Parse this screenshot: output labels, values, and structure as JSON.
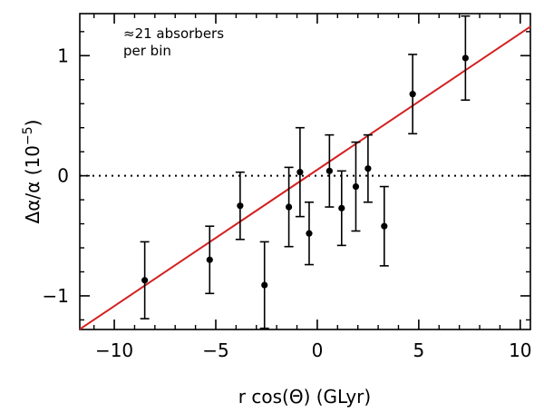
{
  "chart_data": {
    "type": "scatter",
    "title": "",
    "xlabel": "r cos(Θ) (GLyr)",
    "ylabel_main": "Δα/α",
    "ylabel_unit_prefix": "(10",
    "ylabel_unit_exponent": "−5",
    "ylabel_unit_suffix": ")",
    "annotation_line1": "≈21 absorbers",
    "annotation_line2": "per bin",
    "xlim": [
      -11.7,
      10.5
    ],
    "ylim": [
      -1.28,
      1.35
    ],
    "xticks": [
      -10,
      -5,
      0,
      5,
      10
    ],
    "xtick_labels": [
      "−10",
      "−5",
      "0",
      "5",
      "10"
    ],
    "yticks": [
      -1,
      0,
      1
    ],
    "ytick_labels": [
      "−1",
      "0",
      "1"
    ],
    "grid": false,
    "reference_line_y": 0,
    "fit_line": {
      "slope": 0.1135,
      "intercept": 0.05,
      "color": "#d42020"
    },
    "points": [
      {
        "x": -8.5,
        "y": -0.87,
        "err": 0.32
      },
      {
        "x": -5.3,
        "y": -0.7,
        "err": 0.28
      },
      {
        "x": -3.8,
        "y": -0.25,
        "err": 0.28
      },
      {
        "x": -2.6,
        "y": -0.91,
        "err": 0.36
      },
      {
        "x": -1.4,
        "y": -0.26,
        "err": 0.33
      },
      {
        "x": -0.85,
        "y": 0.03,
        "err": 0.37
      },
      {
        "x": -0.4,
        "y": -0.48,
        "err": 0.26
      },
      {
        "x": 0.6,
        "y": 0.04,
        "err": 0.3
      },
      {
        "x": 1.2,
        "y": -0.27,
        "err": 0.31
      },
      {
        "x": 1.9,
        "y": -0.09,
        "err": 0.37
      },
      {
        "x": 2.5,
        "y": 0.06,
        "err": 0.28
      },
      {
        "x": 3.3,
        "y": -0.42,
        "err": 0.33
      },
      {
        "x": 4.7,
        "y": 0.68,
        "err": 0.33
      },
      {
        "x": 7.3,
        "y": 0.98,
        "err": 0.35
      }
    ]
  }
}
